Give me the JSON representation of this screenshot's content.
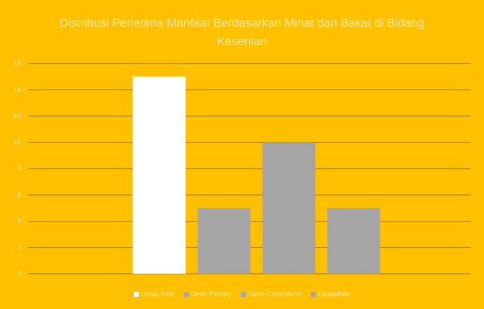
{
  "chart_data": {
    "type": "bar",
    "title": "Distribusi Penerima Manfaat Berdasarkan Minat dan Bakat di Bidang Kesenian",
    "categories": [
      null
    ],
    "series": [
      {
        "name": "Desa Jetis",
        "color": "#ffffff",
        "values": [
          15
        ]
      },
      {
        "name": "Desa Petung",
        "color": "#a5a5a5",
        "values": [
          5
        ]
      },
      {
        "name": "Desa Curahdami",
        "color": "#a5a5a5",
        "values": [
          10
        ]
      },
      {
        "name": "Disabilitas",
        "color": "#a5a5a5",
        "values": [
          5
        ]
      }
    ],
    "ylim": [
      0,
      16
    ],
    "yticks": [
      0,
      2,
      4,
      6,
      8,
      10,
      12,
      14,
      16
    ],
    "grid": true,
    "legend": "bottom"
  }
}
